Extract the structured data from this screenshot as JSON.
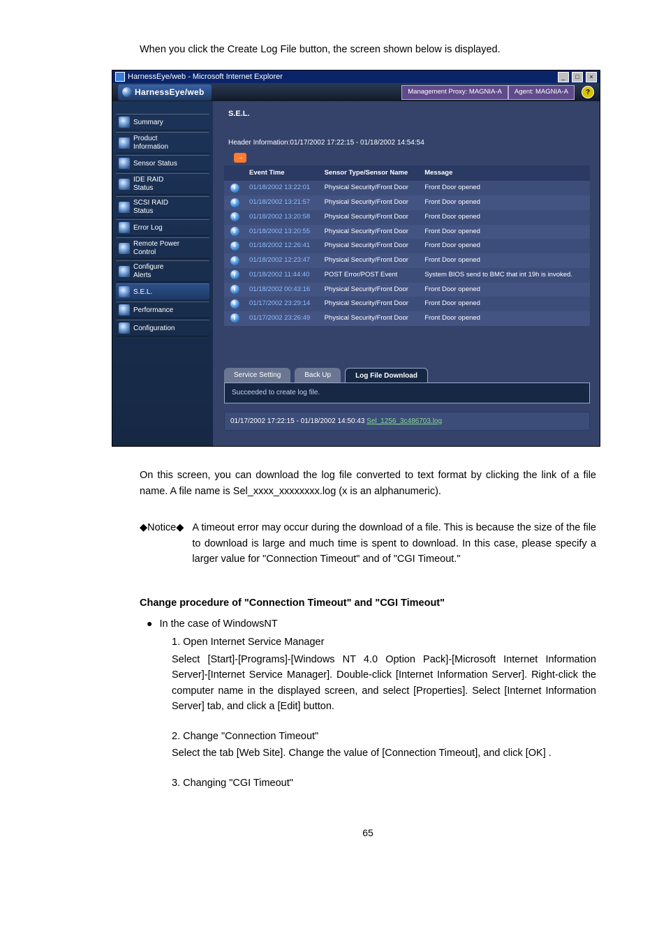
{
  "intro_text": "When you click the Create Log File button, the screen shown below is displayed.",
  "window": {
    "title": "HarnessEye/web - Microsoft Internet Explorer",
    "min": "_",
    "max": "□",
    "close": "×"
  },
  "topbar": {
    "logo": "HarnessEye/web",
    "proxy": "Management Proxy: MAGNIA-A",
    "agent": "Agent: MAGNIA-A",
    "help": "?"
  },
  "sidebar": {
    "items": [
      {
        "label": "Summary"
      },
      {
        "label": "Product\nInformation"
      },
      {
        "label": "Sensor Status"
      },
      {
        "label": "IDE RAID\nStatus"
      },
      {
        "label": "SCSI RAID\nStatus"
      },
      {
        "label": "Error Log"
      },
      {
        "label": "Remote Power\nControl"
      },
      {
        "label": "Configure\nAlerts"
      },
      {
        "label": "S.E.L.",
        "active": true
      },
      {
        "label": "Performance"
      },
      {
        "label": "Configuration"
      }
    ]
  },
  "sel": {
    "title": "S.E.L.",
    "header_info": "Header Information:01/17/2002 17:22:15 - 01/18/2002 14:54:54",
    "go": "→",
    "columns": [
      "",
      "Event Time",
      "Sensor Type/Sensor Name",
      "Message"
    ],
    "rows": [
      {
        "time": "01/18/2002 13:22:01",
        "sensor": "Physical Security/Front Door",
        "msg": "Front Door opened"
      },
      {
        "time": "01/18/2002 13:21:57",
        "sensor": "Physical Security/Front Door",
        "msg": "Front Door opened"
      },
      {
        "time": "01/18/2002 13:20:58",
        "sensor": "Physical Security/Front Door",
        "msg": "Front Door opened"
      },
      {
        "time": "01/18/2002 13:20:55",
        "sensor": "Physical Security/Front Door",
        "msg": "Front Door opened"
      },
      {
        "time": "01/18/2002 12:26:41",
        "sensor": "Physical Security/Front Door",
        "msg": "Front Door opened"
      },
      {
        "time": "01/18/2002 12:23:47",
        "sensor": "Physical Security/Front Door",
        "msg": "Front Door opened"
      },
      {
        "time": "01/18/2002 11:44:40",
        "sensor": "POST Error/POST Event",
        "msg": "System BIOS send to BMC that int 19h is invoked."
      },
      {
        "time": "01/18/2002 00:43:16",
        "sensor": "Physical Security/Front Door",
        "msg": "Front Door opened"
      },
      {
        "time": "01/17/2002 23:29:14",
        "sensor": "Physical Security/Front Door",
        "msg": "Front Door opened"
      },
      {
        "time": "01/17/2002 23:26:49",
        "sensor": "Physical Security/Front Door",
        "msg": "Front Door opened"
      }
    ],
    "tabs": {
      "service": "Service Setting",
      "backup": "Back Up",
      "download": "Log File Download"
    },
    "status_msg": "Succeeded to create log file.",
    "result_prefix": "01/17/2002 17:22:15 - 01/18/2002 14:50:43 ",
    "result_link": "Sel_1256_3c486703.log"
  },
  "below": {
    "para1": "On this screen, you can download the log file converted to text format by clicking the link of a file name. A file name is Sel_xxxx_xxxxxxxx.log (x is an alphanumeric).",
    "notice_label": "◆Notice◆",
    "notice_body": "A timeout error may occur during the download of a file. This is because the size of the file to download is large and much time is spent to download. In this case, please specify a larger value for \"Connection Timeout\" and of \"CGI Timeout.\"",
    "section_heading": "Change procedure of \"Connection Timeout\" and \"CGI Timeout\"",
    "bullet_label": "In the case of WindowsNT",
    "steps": [
      {
        "num": "1.",
        "title": "Open Internet Service Manager",
        "body": "Select [Start]-[Programs]-[Windows NT 4.0 Option Pack]-[Microsoft Internet Information Server]-[Internet Service Manager]. Double-click [Internet Information Server]. Right-click the computer name in the displayed screen, and select [Properties]. Select [Internet Information Server] tab, and click a [Edit] button."
      },
      {
        "num": "2.",
        "title": "Change \"Connection Timeout\"",
        "body": "Select the tab [Web Site]. Change the value of [Connection Timeout], and click [OK] ."
      },
      {
        "num": "3.",
        "title": "Changing \"CGI Timeout\"",
        "body": ""
      }
    ],
    "page_number": "65"
  }
}
